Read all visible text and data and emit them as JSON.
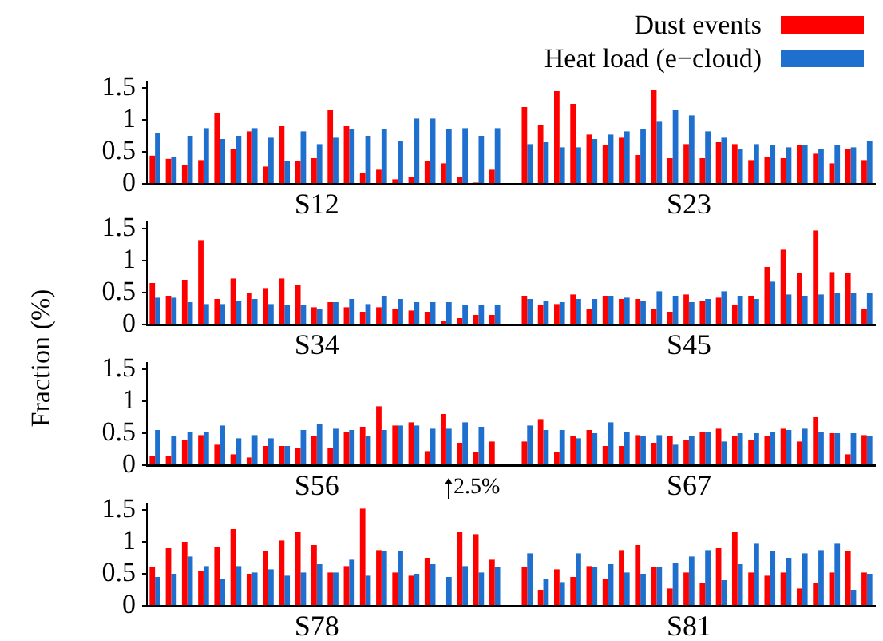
{
  "chart_data": [
    {
      "type": "bar",
      "legend": "top right",
      "ylabel": "Fraction (%)",
      "ylim": [
        0,
        1.6
      ],
      "yticks": [
        0,
        0.5,
        1,
        1.5
      ],
      "categories": [
        null,
        null,
        null,
        null,
        null,
        null,
        null,
        null,
        null,
        null,
        "S12",
        null,
        null,
        null,
        null,
        null,
        null,
        null,
        null,
        null,
        null,
        null,
        null,
        null,
        null,
        null,
        null,
        null,
        null,
        null,
        null,
        null,
        null,
        "S23",
        null,
        null,
        null,
        null,
        null,
        null,
        null,
        null,
        null,
        null,
        null
      ],
      "series": [
        {
          "name": "Dust events",
          "color": "#ff0000",
          "values": [
            0.44,
            0.39,
            0.3,
            0.37,
            1.1,
            0.55,
            0.82,
            0.27,
            0.9,
            0.35,
            0.4,
            1.15,
            0.9,
            0.17,
            0.22,
            0.07,
            0.1,
            0.35,
            0.32,
            0.1,
            0.02,
            0.22,
            null,
            1.2,
            0.92,
            1.45,
            1.25,
            0.77,
            0.6,
            0.72,
            0.45,
            1.47,
            0.4,
            0.62,
            0.4,
            0.65,
            0.62,
            0.37,
            0.42,
            0.4,
            0.6,
            0.47,
            0.32,
            0.55,
            0.37
          ]
        },
        {
          "name": "Heat load (e−cloud)",
          "color": "#1f6fce",
          "values": [
            0.79,
            0.42,
            0.75,
            0.87,
            0.7,
            0.75,
            0.87,
            0.72,
            0.35,
            0.82,
            0.62,
            0.72,
            0.85,
            0.75,
            0.85,
            0.67,
            1.02,
            1.02,
            0.85,
            0.87,
            0.75,
            0.87,
            null,
            0.62,
            0.65,
            0.57,
            0.57,
            0.7,
            0.77,
            0.82,
            0.85,
            0.97,
            1.15,
            1.07,
            0.82,
            0.72,
            0.55,
            0.62,
            0.6,
            0.57,
            0.6,
            0.55,
            0.6,
            0.57,
            0.67
          ]
        }
      ]
    },
    {
      "type": "bar",
      "ylim": [
        0,
        1.6
      ],
      "yticks": [
        0,
        0.5,
        1,
        1.5
      ],
      "categories": [
        null,
        null,
        null,
        null,
        null,
        null,
        null,
        null,
        null,
        null,
        "S34",
        null,
        null,
        null,
        null,
        null,
        null,
        null,
        null,
        null,
        null,
        null,
        null,
        null,
        null,
        null,
        null,
        null,
        null,
        null,
        null,
        null,
        null,
        "S45",
        null,
        null,
        null,
        null,
        null,
        null,
        null,
        null,
        null,
        null,
        null
      ],
      "series": [
        {
          "color": "#ff0000",
          "values": [
            0.65,
            0.45,
            0.7,
            1.32,
            0.4,
            0.72,
            0.5,
            0.57,
            0.72,
            0.62,
            0.27,
            0.35,
            0.27,
            0.2,
            0.27,
            0.25,
            0.22,
            0.2,
            0.05,
            0.1,
            0.15,
            0.15,
            null,
            0.45,
            0.3,
            0.32,
            0.47,
            0.25,
            0.45,
            0.4,
            0.4,
            0.25,
            0.2,
            0.47,
            0.37,
            0.42,
            0.3,
            0.45,
            0.9,
            1.17,
            0.8,
            1.47,
            0.82,
            0.8,
            0.25
          ]
        },
        {
          "color": "#1f6fce",
          "values": [
            0.42,
            0.42,
            0.35,
            0.32,
            0.32,
            0.37,
            0.4,
            0.32,
            0.3,
            0.3,
            0.25,
            0.35,
            0.4,
            0.32,
            0.45,
            0.4,
            0.35,
            0.35,
            0.35,
            0.3,
            0.3,
            0.3,
            null,
            0.4,
            0.37,
            0.35,
            0.4,
            0.4,
            0.45,
            0.42,
            0.37,
            0.52,
            0.45,
            0.35,
            0.4,
            0.52,
            0.45,
            0.4,
            0.67,
            0.47,
            0.45,
            0.47,
            0.5,
            0.5,
            0.5
          ]
        }
      ]
    },
    {
      "type": "bar",
      "ylim": [
        0,
        1.6
      ],
      "yticks": [
        0,
        0.5,
        1,
        1.5
      ],
      "categories": [
        null,
        null,
        null,
        null,
        null,
        null,
        null,
        null,
        null,
        null,
        "S56",
        null,
        null,
        null,
        null,
        null,
        null,
        null,
        null,
        null,
        null,
        null,
        null,
        null,
        null,
        null,
        null,
        null,
        null,
        null,
        null,
        null,
        null,
        "S67",
        null,
        null,
        null,
        null,
        null,
        null,
        null,
        null,
        null,
        null,
        null
      ],
      "series": [
        {
          "color": "#ff0000",
          "values": [
            0.15,
            0.15,
            0.4,
            0.47,
            0.32,
            0.17,
            0.12,
            0.3,
            0.3,
            0.27,
            0.45,
            0.27,
            0.52,
            0.6,
            0.92,
            0.62,
            0.67,
            0.22,
            0.8,
            0.35,
            0.2,
            0.37,
            null,
            0.37,
            0.72,
            0.2,
            0.45,
            0.55,
            0.3,
            0.3,
            0.47,
            0.35,
            0.45,
            0.4,
            0.52,
            0.57,
            0.45,
            0.4,
            0.45,
            0.57,
            0.37,
            0.75,
            0.5,
            0.17,
            0.47
          ]
        },
        {
          "color": "#1f6fce",
          "values": [
            0.55,
            0.45,
            0.52,
            0.52,
            0.62,
            0.42,
            0.47,
            0.42,
            0.3,
            0.55,
            0.65,
            0.57,
            0.55,
            0.45,
            0.55,
            0.62,
            0.62,
            0.57,
            0.57,
            0.67,
            0.6,
            null,
            null,
            0.62,
            0.55,
            0.55,
            0.42,
            0.5,
            0.67,
            0.52,
            0.45,
            0.47,
            0.32,
            0.45,
            0.52,
            0.37,
            0.5,
            0.5,
            0.52,
            0.55,
            0.57,
            0.52,
            0.5,
            0.5,
            0.45
          ]
        }
      ]
    },
    {
      "type": "bar",
      "ylim": [
        0,
        1.6
      ],
      "yticks": [
        0,
        0.5,
        1,
        1.5
      ],
      "annotations": [
        "2.5%"
      ],
      "categories": [
        null,
        null,
        null,
        null,
        null,
        null,
        null,
        null,
        null,
        null,
        "S78",
        null,
        null,
        null,
        null,
        null,
        null,
        null,
        null,
        null,
        null,
        null,
        null,
        null,
        null,
        null,
        null,
        null,
        null,
        null,
        null,
        null,
        null,
        "S81",
        null,
        null,
        null,
        null,
        null,
        null,
        null,
        null,
        null,
        null,
        null
      ],
      "series": [
        {
          "color": "#ff0000",
          "values": [
            0.6,
            0.9,
            1.0,
            0.55,
            0.92,
            1.2,
            0.5,
            0.85,
            1.02,
            1.15,
            0.95,
            0.52,
            0.62,
            1.52,
            0.87,
            0.52,
            0.47,
            0.75,
            null,
            1.15,
            1.12,
            0.72,
            null,
            0.6,
            0.25,
            0.57,
            0.45,
            0.62,
            0.42,
            0.87,
            0.95,
            0.6,
            0.27,
            0.52,
            0.35,
            0.9,
            1.15,
            0.52,
            0.47,
            0.52,
            0.27,
            0.35,
            0.52,
            0.85,
            0.52
          ]
        },
        {
          "color": "#1f6fce",
          "values": [
            0.45,
            0.5,
            0.77,
            0.62,
            0.42,
            0.62,
            0.52,
            0.57,
            0.47,
            0.52,
            0.65,
            0.52,
            0.72,
            0.47,
            0.85,
            0.85,
            0.5,
            0.65,
            0.45,
            0.62,
            0.52,
            0.6,
            null,
            0.82,
            0.42,
            0.37,
            0.82,
            0.6,
            0.65,
            0.52,
            0.5,
            0.6,
            0.67,
            0.77,
            0.87,
            0.4,
            0.65,
            0.97,
            0.85,
            0.75,
            0.82,
            0.87,
            0.97,
            0.25,
            0.5
          ]
        }
      ]
    }
  ]
}
